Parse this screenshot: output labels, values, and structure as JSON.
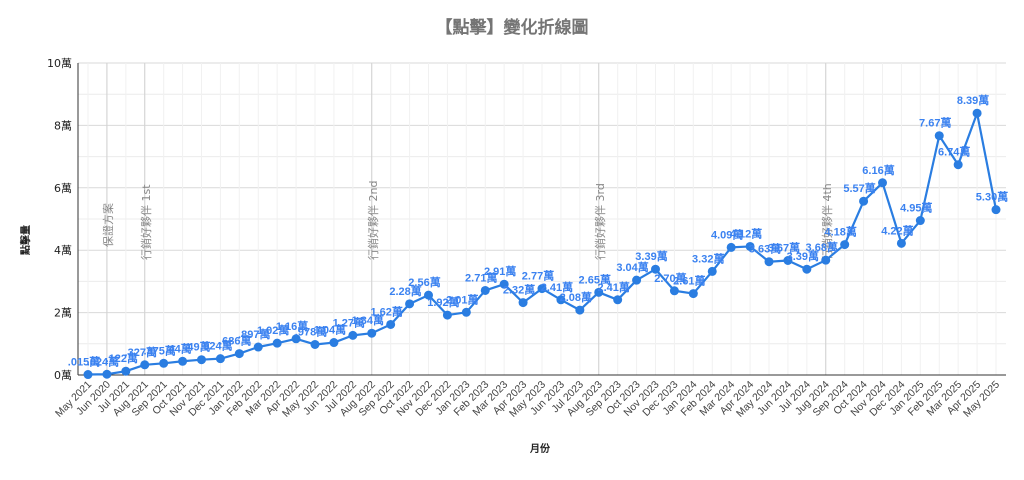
{
  "chart_data": {
    "type": "line",
    "title": "【點擊】變化折線圖",
    "xlabel": "月份",
    "ylabel": "點擊量",
    "ylim": [
      0,
      100000
    ],
    "yticks": [
      "0萬",
      "2萬",
      "4萬",
      "6萬",
      "8萬",
      "10萬"
    ],
    "grid": true,
    "legend": "none",
    "line_color": "#2a7de1",
    "categories": [
      "May 2021",
      "Jun 2020",
      "Jul 2021",
      "Aug 2021",
      "Sep 2021",
      "Oct 2021",
      "Nov 2021",
      "Dec 2021",
      "Jan 2022",
      "Feb 2022",
      "Mar 2022",
      "Apr 2022",
      "May 2022",
      "Jun 2022",
      "Jul 2022",
      "Aug 2022",
      "Sep 2022",
      "Oct 2022",
      "Nov 2022",
      "Dec 2022",
      "Jan 2023",
      "Feb 2023",
      "Mar 2023",
      "Apr 2023",
      "May 2023",
      "Jun 2023",
      "Jul 2023",
      "Aug 2023",
      "Sep 2023",
      "Oct 2023",
      "Nov 2023",
      "Dec 2023",
      "Jan 2024",
      "Feb 2024",
      "Mar 2024",
      "Apr 2024",
      "May 2024",
      "Jun 2024",
      "Jul 2024",
      "Jug 2024",
      "Sep 2024",
      "Oct 2024",
      "Nov 2024",
      "Dec 2024",
      "Jan 2025",
      "Feb 2025",
      "Mar 2025",
      "Apr 2025",
      "May 2025"
    ],
    "series": [
      {
        "name": "點擊量",
        "values_wan": [
          0.015,
          0.024,
          0.122,
          0.327,
          0.375,
          0.44,
          0.49,
          0.524,
          0.686,
          0.897,
          1.02,
          1.16,
          0.978,
          1.04,
          1.27,
          1.34,
          1.62,
          2.28,
          2.56,
          1.92,
          2.01,
          2.71,
          2.91,
          2.32,
          2.77,
          2.41,
          2.08,
          2.65,
          2.41,
          3.04,
          3.39,
          2.7,
          2.61,
          3.32,
          4.09,
          4.12,
          3.63,
          3.67,
          3.39,
          3.68,
          4.18,
          5.57,
          6.16,
          4.22,
          4.95,
          7.67,
          6.74,
          8.39,
          5.3
        ],
        "labels": [
          ".015萬",
          ".024萬",
          ".122萬",
          ".327萬",
          ".375萬",
          ".44萬",
          ".49萬",
          ".524萬",
          ".686萬",
          ".897萬",
          "1.02萬",
          "1.16萬",
          ".978萬",
          "1.04萬",
          "1.27萬",
          "1.34萬",
          "1.62萬",
          "2.28萬",
          "2.56萬",
          "1.92萬",
          "2.01萬",
          "2.71萬",
          "2.91萬",
          "2.32萬",
          "2.77萬",
          "2.41萬",
          "2.08萬",
          "2.65萬",
          "2.41萬",
          "3.04萬",
          "3.39萬",
          "2.70萬",
          "2.61萬",
          "3.32萬",
          "4.09萬",
          "4.12萬",
          "3.63萬",
          "3.67萬",
          "3.39萬",
          "3.68萬",
          "4.18萬",
          "5.57萬",
          "6.16萬",
          "4.22萬",
          "4.95萬",
          "7.67萬",
          "6.74萬",
          "8.39萬",
          "5.30萬"
        ]
      }
    ],
    "annotations": [
      {
        "index": 1,
        "text": "保證方案"
      },
      {
        "index": 3,
        "text": "行銷好夥伴 1st"
      },
      {
        "index": 15,
        "text": "行銷好夥伴 2nd"
      },
      {
        "index": 27,
        "text": "行銷好夥伴 3rd"
      },
      {
        "index": 39,
        "text": "行銷好夥伴 4th"
      }
    ]
  }
}
